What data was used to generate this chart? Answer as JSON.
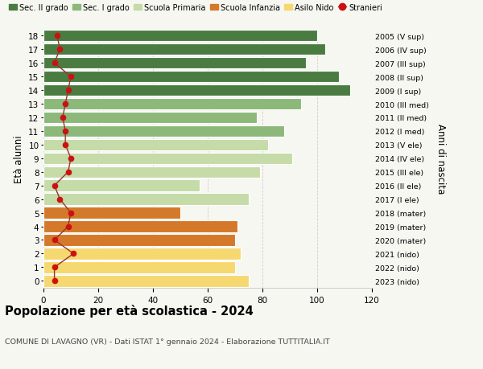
{
  "ages": [
    18,
    17,
    16,
    15,
    14,
    13,
    12,
    11,
    10,
    9,
    8,
    7,
    6,
    5,
    4,
    3,
    2,
    1,
    0
  ],
  "bar_values": [
    100,
    103,
    96,
    108,
    112,
    94,
    78,
    88,
    82,
    91,
    79,
    57,
    75,
    50,
    71,
    70,
    72,
    70,
    75
  ],
  "stranieri_values": [
    5,
    6,
    4,
    10,
    9,
    8,
    7,
    8,
    8,
    10,
    9,
    4,
    6,
    10,
    9,
    4,
    11,
    4,
    4
  ],
  "right_labels": [
    "2005 (V sup)",
    "2006 (IV sup)",
    "2007 (III sup)",
    "2008 (II sup)",
    "2009 (I sup)",
    "2010 (III med)",
    "2011 (II med)",
    "2012 (I med)",
    "2013 (V ele)",
    "2014 (IV ele)",
    "2015 (III ele)",
    "2016 (II ele)",
    "2017 (I ele)",
    "2018 (mater)",
    "2019 (mater)",
    "2020 (mater)",
    "2021 (nido)",
    "2022 (nido)",
    "2023 (nido)"
  ],
  "bar_colors": {
    "sec2": "#4a7c42",
    "sec1": "#8cb87a",
    "primaria": "#c5dba8",
    "infanzia": "#d4782a",
    "nido": "#f5d870"
  },
  "age_categories": {
    "sec2": [
      14,
      15,
      16,
      17,
      18
    ],
    "sec1": [
      11,
      12,
      13
    ],
    "primaria": [
      6,
      7,
      8,
      9,
      10
    ],
    "infanzia": [
      3,
      4,
      5
    ],
    "nido": [
      0,
      1,
      2
    ]
  },
  "stranieri_color": "#cc1111",
  "line_color": "#993333",
  "title": "Popolazione per età scolastica - 2024",
  "subtitle": "COMUNE DI LAVAGNO (VR) - Dati ISTAT 1° gennaio 2024 - Elaborazione TUTTITALIA.IT",
  "ylabel": "Età alunni",
  "right_ylabel": "Anni di nascita",
  "xlim": [
    0,
    120
  ],
  "legend_labels": [
    "Sec. II grado",
    "Sec. I grado",
    "Scuola Primaria",
    "Scuola Infanzia",
    "Asilo Nido",
    "Stranieri"
  ],
  "background_color": "#f7f7f2",
  "grid_color": "#cccccc"
}
